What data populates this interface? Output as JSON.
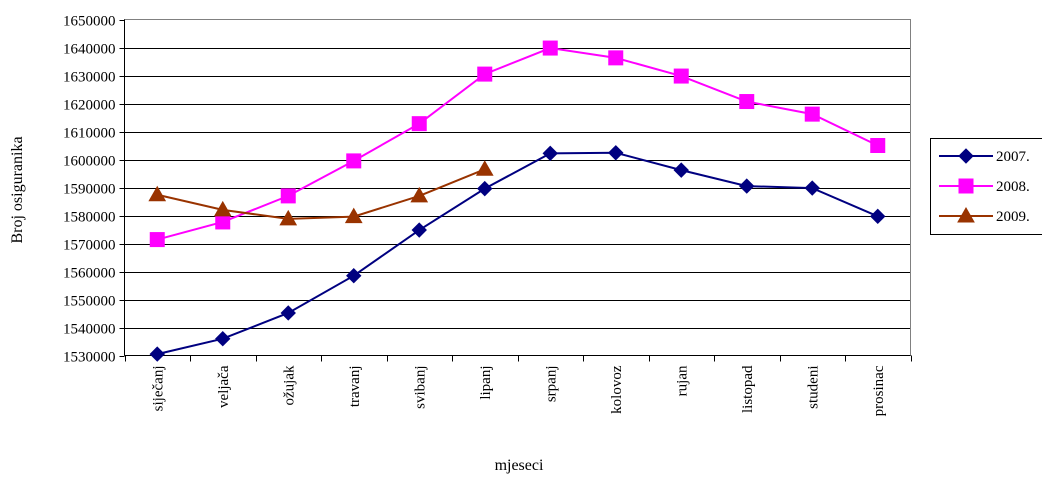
{
  "chart_data": {
    "type": "line",
    "title": "",
    "xlabel": "mjeseci",
    "ylabel": "Broj osiguranika",
    "categories": [
      "siječanj",
      "veljača",
      "ožujak",
      "travanj",
      "svibanj",
      "lipanj",
      "srpanj",
      "kolovoz",
      "rujan",
      "listopad",
      "studeni",
      "prosinac"
    ],
    "ylim": [
      1530000,
      1650000
    ],
    "ytick_step": 10000,
    "yticks": [
      "1530000",
      "1540000",
      "1550000",
      "1560000",
      "1570000",
      "1580000",
      "1590000",
      "1600000",
      "1610000",
      "1620000",
      "1630000",
      "1640000",
      "1650000"
    ],
    "grid": "horizontal",
    "legend_position": "right",
    "series": [
      {
        "name": "2007.",
        "color": "#000080",
        "marker": "diamond",
        "values": [
          1530500,
          1536000,
          1545200,
          1558500,
          1574800,
          1589600,
          1602200,
          1602400,
          1596200,
          1590500,
          1589800,
          1579700
        ]
      },
      {
        "name": "2008.",
        "color": "#FF00FF",
        "marker": "square",
        "values": [
          1571400,
          1577700,
          1587000,
          1599500,
          1612800,
          1630500,
          1639800,
          1636300,
          1629800,
          1620700,
          1616200,
          1605000
        ]
      },
      {
        "name": "2009.",
        "color": "#993300",
        "marker": "triangle",
        "values": [
          1587400,
          1582000,
          1578800,
          1579600,
          1587000,
          1596500,
          null,
          null,
          null,
          null,
          null,
          null
        ]
      }
    ]
  }
}
